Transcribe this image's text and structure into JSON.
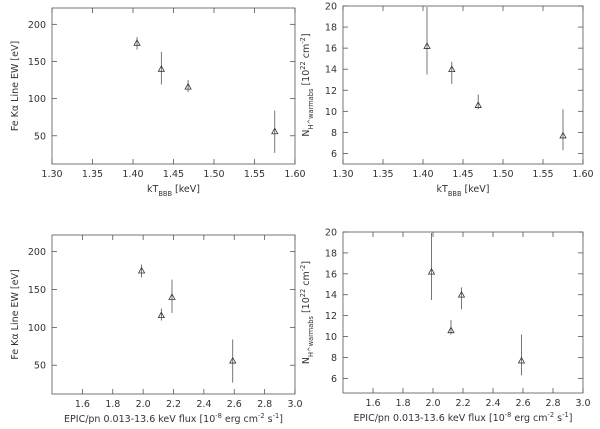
{
  "chart_data": [
    {
      "type": "scatter",
      "title": "",
      "xlabel": "kT_BBB [keV]",
      "ylabel": "Fe Kα Line EW [eV]",
      "xlim": [
        1.3,
        1.6
      ],
      "ylim": [
        12,
        222
      ],
      "xticks": [
        "1.30",
        "1.35",
        "1.40",
        "1.45",
        "1.50",
        "1.55",
        "1.60"
      ],
      "yticks": [
        "50",
        "100",
        "150",
        "200"
      ],
      "grid": false,
      "points": [
        {
          "x": 1.405,
          "y": 175,
          "y_low": 166,
          "y_high": 183
        },
        {
          "x": 1.435,
          "y": 140,
          "y_low": 119,
          "y_high": 163
        },
        {
          "x": 1.468,
          "y": 116,
          "y_low": 109,
          "y_high": 125
        },
        {
          "x": 1.575,
          "y": 56,
          "y_low": 27,
          "y_high": 84
        }
      ]
    },
    {
      "type": "scatter",
      "title": "",
      "xlabel": "kT_BBB [keV]",
      "ylabel": "N_H^warmabs [10^22 cm^-2]",
      "xlim": [
        1.3,
        1.6
      ],
      "ylim": [
        5,
        20
      ],
      "xticks": [
        "1.30",
        "1.35",
        "1.40",
        "1.45",
        "1.50",
        "1.55",
        "1.60"
      ],
      "yticks": [
        "6",
        "8",
        "10",
        "12",
        "14",
        "16",
        "18",
        "20"
      ],
      "grid": false,
      "points": [
        {
          "x": 1.405,
          "y": 16.2,
          "y_low": 13.5,
          "y_high": 19.9
        },
        {
          "x": 1.436,
          "y": 14.0,
          "y_low": 12.6,
          "y_high": 14.7
        },
        {
          "x": 1.469,
          "y": 10.6,
          "y_low": 10.2,
          "y_high": 11.6
        },
        {
          "x": 1.575,
          "y": 7.7,
          "y_low": 6.3,
          "y_high": 10.2
        }
      ]
    },
    {
      "type": "scatter",
      "title": "",
      "xlabel": "EPIC/pn 0.013-13.6 keV flux [10^-8 erg cm^-2 s^-1]",
      "ylabel": "Fe Kα Line EW [eV]",
      "xlim": [
        1.4,
        3.0
      ],
      "ylim": [
        12,
        222
      ],
      "xticks": [
        "1.6",
        "1.8",
        "2.0",
        "2.2",
        "2.4",
        "2.6",
        "2.8",
        "3.0"
      ],
      "yticks": [
        "50",
        "100",
        "150",
        "200"
      ],
      "grid": false,
      "points": [
        {
          "x": 1.99,
          "y": 175,
          "y_low": 166,
          "y_high": 183
        },
        {
          "x": 2.12,
          "y": 116,
          "y_low": 109,
          "y_high": 125
        },
        {
          "x": 2.19,
          "y": 140,
          "y_low": 119,
          "y_high": 163
        },
        {
          "x": 2.59,
          "y": 56,
          "y_low": 27,
          "y_high": 84
        }
      ]
    },
    {
      "type": "scatter",
      "title": "",
      "xlabel": "EPIC/pn 0.013-13.6 keV flux [10^-8 erg cm^-2 s^-1]",
      "ylabel": "N_H^warmabs [10^22 cm^-2]",
      "xlim": [
        1.4,
        3.0
      ],
      "ylim": [
        4.6,
        20
      ],
      "xticks": [
        "1.6",
        "1.8",
        "2.0",
        "2.2",
        "2.4",
        "2.6",
        "2.8",
        "3.0"
      ],
      "yticks": [
        "6",
        "8",
        "10",
        "12",
        "14",
        "16",
        "18",
        "20"
      ],
      "grid": false,
      "points": [
        {
          "x": 1.99,
          "y": 16.2,
          "y_low": 13.5,
          "y_high": 19.9
        },
        {
          "x": 2.12,
          "y": 10.6,
          "y_low": 10.2,
          "y_high": 11.6
        },
        {
          "x": 2.19,
          "y": 14.0,
          "y_low": 12.6,
          "y_high": 14.7
        },
        {
          "x": 2.59,
          "y": 7.7,
          "y_low": 6.3,
          "y_high": 10.2
        }
      ]
    }
  ]
}
